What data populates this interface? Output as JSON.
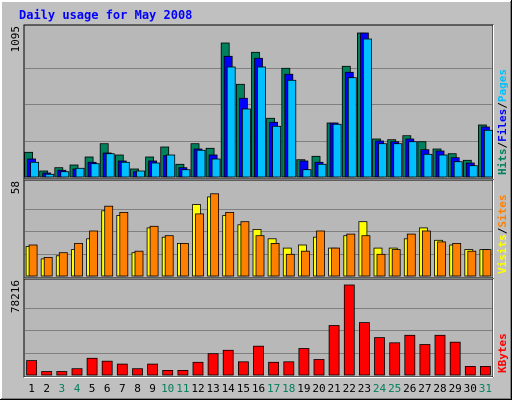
{
  "chart_data": {
    "title": "Daily usage for May 2008",
    "type": "bar",
    "colors": {
      "background": "#c0c0c0",
      "panel": "#b8b8b8",
      "hits": "#00805c",
      "files": "#0000ff",
      "pages": "#00c0ff",
      "visits": "#ffff00",
      "sites": "#ff8000",
      "kbytes": "#ff0000",
      "title_text": "#0000ff",
      "weekend_label": "#00805c"
    },
    "days": [
      "1",
      "2",
      "3",
      "4",
      "5",
      "6",
      "7",
      "8",
      "9",
      "10",
      "11",
      "12",
      "13",
      "14",
      "15",
      "16",
      "17",
      "18",
      "19",
      "20",
      "21",
      "22",
      "23",
      "24",
      "25",
      "26",
      "27",
      "28",
      "29",
      "30",
      "31"
    ],
    "weekend_days": [
      "3",
      "4",
      "10",
      "11",
      "17",
      "18",
      "24",
      "25",
      "31"
    ],
    "panels": [
      {
        "id": "hits-files-pages",
        "max_label": "1095",
        "ymax": 1095,
        "legend": [
          {
            "text": "Hits",
            "color": "#00805c"
          },
          {
            "text": "/",
            "color": "#000000"
          },
          {
            "text": "Files",
            "color": "#0000ff"
          },
          {
            "text": "/",
            "color": "#000000"
          },
          {
            "text": "Pages",
            "color": "#00c0ff"
          }
        ],
        "series": [
          {
            "name": "Hits",
            "color": "#00805c",
            "values": [
              185,
              45,
              70,
              90,
              150,
              250,
              165,
              60,
              150,
              225,
              95,
              250,
              215,
              1005,
              695,
              935,
              440,
              815,
              130,
              155,
              405,
              830,
              1080,
              285,
              280,
              310,
              265,
              210,
              175,
              125,
              390
            ]
          },
          {
            "name": "Files",
            "color": "#0000ff",
            "values": [
              135,
              30,
              50,
              60,
              110,
              180,
              120,
              40,
              120,
              160,
              70,
              210,
              165,
              905,
              590,
              890,
              410,
              770,
              120,
              110,
              405,
              785,
              1080,
              270,
              265,
              285,
              205,
              195,
              145,
              105,
              375
            ]
          },
          {
            "name": "Pages",
            "color": "#00c0ff",
            "values": [
              110,
              20,
              40,
              65,
              100,
              175,
              110,
              45,
              105,
              165,
              55,
              200,
              135,
              825,
              510,
              825,
              380,
              725,
              55,
              95,
              395,
              745,
              1035,
              250,
              250,
              265,
              170,
              165,
              115,
              85,
              350
            ]
          }
        ]
      },
      {
        "id": "visits-sites",
        "max_label": "58",
        "ymax": 58,
        "legend": [
          {
            "text": "Visits",
            "color": "#ffff00"
          },
          {
            "text": "/",
            "color": "#000000"
          },
          {
            "text": "Sites",
            "color": "#ff8000"
          }
        ],
        "series": [
          {
            "name": "Visits",
            "color": "#ffff00",
            "values": [
              19,
              11,
              13,
              17,
              24,
              42,
              39,
              15,
              31,
              25,
              21,
              46,
              51,
              39,
              33,
              30,
              24,
              18,
              20,
              25,
              18,
              26,
              35,
              18,
              18,
              24,
              31,
              23,
              20,
              17,
              17
            ]
          },
          {
            "name": "Sites",
            "color": "#ff8000",
            "values": [
              20,
              12,
              15,
              21,
              29,
              45,
              41,
              16,
              32,
              26,
              21,
              40,
              53,
              41,
              35,
              26,
              21,
              14,
              16,
              29,
              18,
              27,
              26,
              14,
              17,
              27,
              29,
              22,
              21,
              16,
              17
            ]
          }
        ]
      },
      {
        "id": "kbytes",
        "max_label": "78216",
        "ymax": 78216,
        "legend": [
          {
            "text": "KBytes",
            "color": "#ff0000"
          }
        ],
        "series": [
          {
            "name": "KBytes",
            "color": "#ff0000",
            "values": [
              12500,
              3000,
              3000,
              5500,
              14500,
              12000,
              9500,
              5500,
              9500,
              4000,
              4000,
              11000,
              18500,
              21500,
              11500,
              25000,
              11000,
              11500,
              23000,
              13500,
              43000,
              78216,
              45500,
              32500,
              28000,
              34500,
              26500,
              34500,
              28500,
              7500,
              7500
            ]
          }
        ]
      }
    ]
  }
}
